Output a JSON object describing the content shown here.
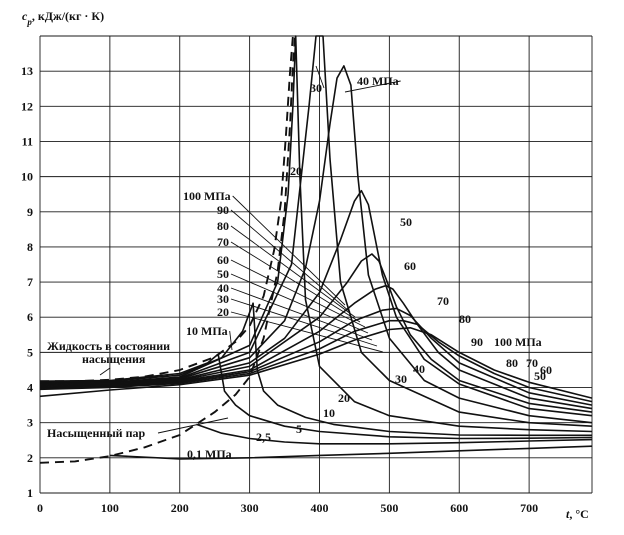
{
  "chart_data": {
    "type": "line",
    "title": "",
    "ylabel": "c_p, кДж/(кг · К)",
    "ylabel_var": "c",
    "ylabel_sub": "p",
    "ylabel_unit": ", кДж/(кг · К)",
    "xlabel": "t, °C",
    "xlabel_var": "t",
    "xlabel_unit": ", °C",
    "xlim": [
      0,
      790
    ],
    "ylim": [
      1,
      14
    ],
    "grid": true,
    "x_ticks": [
      0,
      100,
      200,
      300,
      400,
      500,
      600,
      700
    ],
    "y_ticks": [
      1,
      2,
      3,
      4,
      5,
      6,
      7,
      8,
      9,
      10,
      11,
      12,
      13
    ],
    "saturation": {
      "liquid_label_line1": "Жидкость в состоянии",
      "liquid_label_line2": "насыщения",
      "vapor_label": "Насыщенный пар",
      "liquid": {
        "x": [
          0,
          50,
          100,
          150,
          200,
          250,
          280,
          300,
          320,
          335,
          345,
          352,
          358,
          362,
          365,
          368
        ],
        "y": [
          4.18,
          4.18,
          4.22,
          4.31,
          4.5,
          4.87,
          5.3,
          5.75,
          6.6,
          7.9,
          9.3,
          11.2,
          13.0,
          14.0,
          14.0,
          14.0
        ]
      },
      "vapor": {
        "x": [
          0,
          50,
          100,
          150,
          200,
          250,
          280,
          300,
          320,
          340,
          350,
          358,
          362,
          365
        ],
        "y": [
          1.86,
          1.9,
          2.05,
          2.3,
          2.65,
          3.3,
          3.8,
          4.3,
          5.4,
          7.3,
          9.0,
          11.5,
          13.2,
          14.0
        ]
      }
    },
    "series": [
      {
        "name": "0,1 МПа",
        "x": [
          100,
          200,
          300,
          400,
          500,
          600,
          700,
          790
        ],
        "y": [
          2.07,
          1.97,
          2.0,
          2.07,
          2.13,
          2.2,
          2.27,
          2.33
        ]
      },
      {
        "name": "2,5",
        "x": [
          224,
          260,
          300,
          350,
          400,
          500,
          600,
          700,
          790
        ],
        "y": [
          2.95,
          2.7,
          2.55,
          2.45,
          2.4,
          2.4,
          2.43,
          2.48,
          2.52
        ]
      },
      {
        "name": "5",
        "x": [
          0,
          100,
          200,
          240,
          255,
          264,
          280,
          300,
          350,
          400,
          500,
          600,
          700,
          790
        ],
        "y": [
          4.18,
          4.2,
          4.4,
          4.7,
          4.95,
          3.9,
          3.5,
          3.2,
          2.9,
          2.75,
          2.6,
          2.55,
          2.56,
          2.58
        ]
      },
      {
        "name": "10 МПа",
        "x": [
          0,
          100,
          200,
          260,
          290,
          305,
          311,
          320,
          340,
          380,
          420,
          500,
          600,
          700,
          790
        ],
        "y": [
          4.15,
          4.18,
          4.35,
          4.85,
          5.6,
          6.4,
          4.5,
          3.9,
          3.5,
          3.15,
          2.95,
          2.75,
          2.65,
          2.64,
          2.64
        ]
      },
      {
        "name": "20",
        "x": [
          0,
          100,
          200,
          300,
          340,
          355,
          362,
          366,
          372,
          380,
          400,
          450,
          500,
          600,
          700,
          790
        ],
        "y": [
          4.12,
          4.15,
          4.3,
          5.2,
          7.0,
          9.5,
          12.0,
          14.0,
          10.0,
          6.5,
          4.6,
          3.6,
          3.2,
          2.9,
          2.8,
          2.75
        ]
      },
      {
        "name": "30",
        "x": [
          0,
          100,
          200,
          300,
          360,
          385,
          395,
          400,
          405,
          415,
          430,
          460,
          500,
          600,
          700,
          790
        ],
        "y": [
          4.1,
          4.13,
          4.27,
          5.0,
          7.5,
          12.0,
          14.0,
          14.0,
          14.0,
          10.5,
          7.0,
          5.0,
          4.2,
          3.3,
          3.0,
          2.9
        ]
      },
      {
        "name": "40 МПа",
        "x": [
          0,
          100,
          200,
          300,
          350,
          380,
          400,
          415,
          425,
          435,
          445,
          455,
          470,
          500,
          550,
          600,
          700,
          790
        ],
        "y": [
          4.08,
          4.11,
          4.25,
          4.85,
          5.9,
          7.4,
          9.3,
          11.5,
          12.8,
          13.15,
          12.6,
          10.0,
          7.2,
          5.4,
          4.2,
          3.7,
          3.2,
          3.0
        ]
      },
      {
        "name": "50",
        "x": [
          0,
          100,
          200,
          300,
          350,
          400,
          430,
          450,
          460,
          470,
          480,
          490,
          510,
          550,
          600,
          700,
          790
        ],
        "y": [
          4.05,
          4.08,
          4.22,
          4.7,
          5.4,
          6.7,
          8.2,
          9.3,
          9.6,
          9.2,
          8.2,
          7.2,
          6.0,
          4.8,
          4.1,
          3.4,
          3.2
        ]
      },
      {
        "name": "60",
        "x": [
          0,
          100,
          200,
          300,
          400,
          440,
          460,
          475,
          485,
          495,
          510,
          530,
          560,
          600,
          700,
          790
        ],
        "y": [
          4.03,
          4.06,
          4.2,
          4.6,
          6.0,
          7.0,
          7.6,
          7.8,
          7.6,
          7.1,
          6.3,
          5.5,
          4.8,
          4.2,
          3.55,
          3.3
        ]
      },
      {
        "name": "70",
        "x": [
          0,
          100,
          200,
          300,
          400,
          450,
          480,
          495,
          505,
          520,
          540,
          570,
          600,
          700,
          790
        ],
        "y": [
          4.0,
          4.04,
          4.18,
          4.5,
          5.6,
          6.4,
          6.8,
          6.9,
          6.8,
          6.4,
          5.8,
          5.0,
          4.5,
          3.7,
          3.4
        ]
      },
      {
        "name": "80",
        "x": [
          0,
          100,
          200,
          300,
          400,
          450,
          490,
          510,
          530,
          560,
          600,
          700,
          790
        ],
        "y": [
          3.98,
          4.02,
          4.15,
          4.45,
          5.3,
          5.9,
          6.2,
          6.25,
          6.05,
          5.4,
          4.7,
          3.85,
          3.5
        ]
      },
      {
        "name": "90",
        "x": [
          0,
          100,
          200,
          300,
          400,
          450,
          500,
          520,
          540,
          570,
          600,
          650,
          700,
          790
        ],
        "y": [
          3.95,
          4.0,
          4.12,
          4.4,
          5.1,
          5.6,
          5.9,
          5.9,
          5.8,
          5.3,
          4.9,
          4.4,
          4.0,
          3.6
        ]
      },
      {
        "name": "100 МПа",
        "x": [
          0,
          100,
          200,
          300,
          400,
          450,
          500,
          530,
          560,
          600,
          650,
          700,
          790
        ],
        "y": [
          3.75,
          3.93,
          4.08,
          4.35,
          4.95,
          5.35,
          5.65,
          5.7,
          5.5,
          5.0,
          4.5,
          4.15,
          3.7
        ]
      }
    ],
    "annotations": [
      {
        "text": "100 МПа"
      },
      {
        "text": "90"
      },
      {
        "text": "80"
      },
      {
        "text": "70"
      },
      {
        "text": "60"
      },
      {
        "text": "50"
      },
      {
        "text": "40"
      },
      {
        "text": "30"
      },
      {
        "text": "20"
      },
      {
        "text": "10 МПа"
      },
      {
        "text": "30"
      },
      {
        "text": "40 МПа"
      },
      {
        "text": "20"
      },
      {
        "text": "50"
      },
      {
        "text": "60"
      },
      {
        "text": "70"
      },
      {
        "text": "80"
      },
      {
        "text": "90"
      },
      {
        "text": "100 МПа"
      },
      {
        "text": "80"
      },
      {
        "text": "70"
      },
      {
        "text": "60"
      },
      {
        "text": "50"
      },
      {
        "text": "40"
      },
      {
        "text": "30"
      },
      {
        "text": "20"
      },
      {
        "text": "10"
      },
      {
        "text": "5"
      },
      {
        "text": "2,5"
      },
      {
        "text": "0,1 МПа"
      }
    ]
  }
}
